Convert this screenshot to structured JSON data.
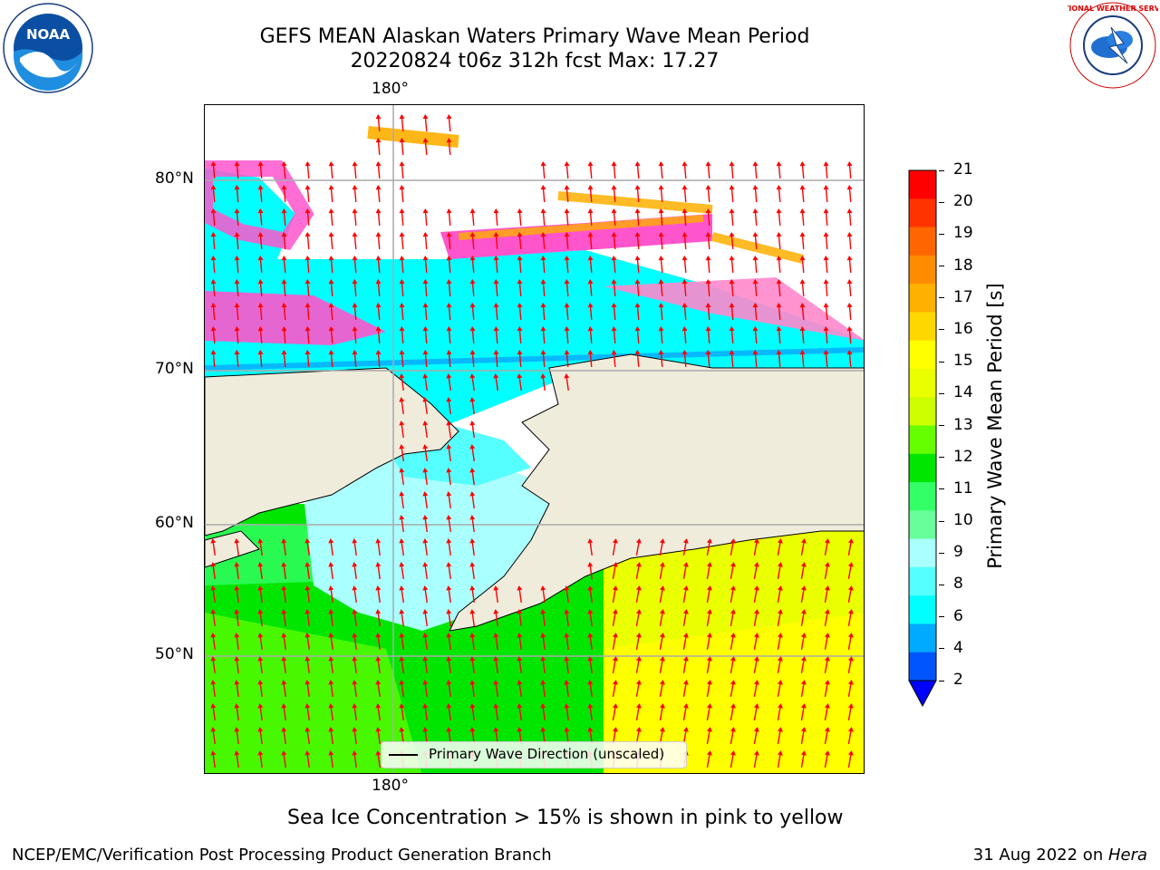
{
  "header": {
    "title_line1": "GEFS MEAN Alaskan Waters Primary Wave Mean Period",
    "title_line2": "20220824 t06z 312h fcst   Max: 17.27"
  },
  "logos": {
    "left": "NOAA",
    "right": "NATIONAL WEATHER SERVICE"
  },
  "map": {
    "lon_label_top": "180°",
    "lon_label_bottom": "180°",
    "lat_labels": [
      "80°N",
      "70°N",
      "60°N",
      "50°N"
    ],
    "legend_text": "Primary Wave Direction (unscaled)",
    "arrow_color": "#ff0000",
    "land_color": "#efecdc"
  },
  "colorbar": {
    "label": "Primary Wave Mean Period [s]",
    "ticks": [
      "21",
      "20",
      "19",
      "18",
      "17",
      "16",
      "15",
      "14",
      "13",
      "12",
      "11",
      "10",
      "9",
      "8",
      "6",
      "4",
      "2"
    ],
    "colors": [
      "#ff0000",
      "#ff3300",
      "#ff6600",
      "#ff8c00",
      "#ffb000",
      "#ffd700",
      "#ffff00",
      "#eaff00",
      "#ccff00",
      "#66ff00",
      "#00e600",
      "#33ff66",
      "#66ff99",
      "#aaffff",
      "#55ffff",
      "#00ffff",
      "#00aaff",
      "#0055ff"
    ],
    "extend_color": "#0000ff"
  },
  "caption": "Sea Ice Concentration > 15% is shown in pink to yellow",
  "footer": {
    "left": "NCEP/EMC/Verification Post Processing Product Generation Branch",
    "right_prefix": "31 Aug 2022 on ",
    "right_host": "Hera"
  }
}
